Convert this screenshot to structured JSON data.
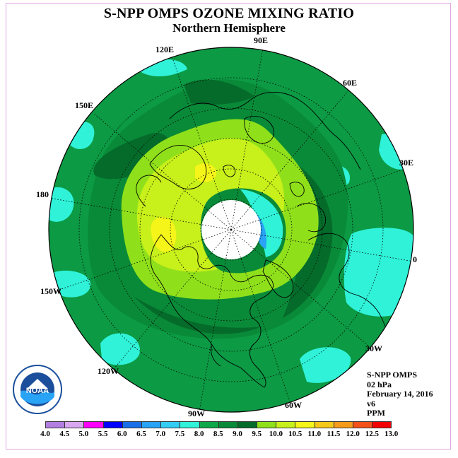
{
  "title": "S-NPP OMPS OZONE MIXING RATIO",
  "subtitle": "Northern Hemisphere",
  "longitude_labels": [
    "90E",
    "60E",
    "30E",
    "0",
    "30W",
    "60W",
    "90W",
    "120W",
    "150W",
    "180",
    "150E",
    "120E"
  ],
  "info": {
    "instrument": "S-NPP OMPS",
    "pressure_level": "02 hPa",
    "date": "February 14, 2016",
    "version": "v6",
    "units": "PPM"
  },
  "logo_text": "NOAA",
  "colorbar": {
    "ticks": [
      "4.0",
      "4.5",
      "5.0",
      "5.5",
      "6.0",
      "6.5",
      "7.0",
      "7.5",
      "8.0",
      "8.5",
      "9.0",
      "9.5",
      "10.0",
      "10.5",
      "11.0",
      "11.5",
      "12.0",
      "12.5",
      "13.0"
    ],
    "colors": [
      "#b27fe0",
      "#d9a6f0",
      "#ff00ff",
      "#0000ff",
      "#1a6fe8",
      "#29a3f5",
      "#33ccf2",
      "#2ff2d8",
      "#0ea848",
      "#098a38",
      "#056b2a",
      "#8fe01a",
      "#c8f01a",
      "#f5f51a",
      "#f5c81a",
      "#f59a1a",
      "#f5501a",
      "#f50000",
      "#8b5a3c"
    ]
  },
  "colors": {
    "polar_night": "#ffffff",
    "ocean_background": "#0c9a44",
    "coastlines": "#000000",
    "frame_border": "#e0a8e0"
  }
}
